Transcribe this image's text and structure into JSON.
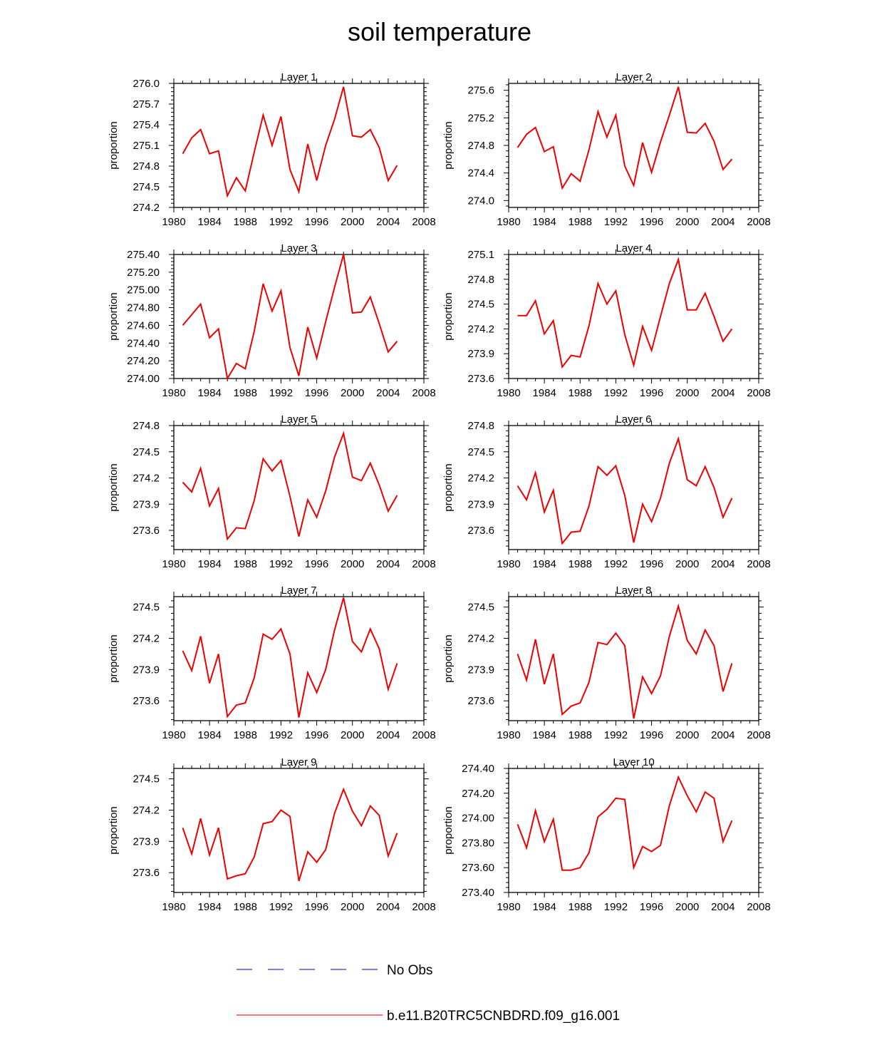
{
  "title": "soil temperature",
  "legend": {
    "items": [
      {
        "label": "No Obs",
        "style": "dashed",
        "color": "#3333cc"
      },
      {
        "label": "b.e11.B20TRC5CNBDRD.f09_g16.001",
        "style": "solid",
        "color": "#ff2020"
      }
    ]
  },
  "colors": {
    "line": "#ee0000",
    "axis": "#000000"
  },
  "chart_data": [
    {
      "type": "line",
      "title": "Layer 1",
      "ylabel": "proportion",
      "xlim": [
        1980,
        2008
      ],
      "xticks": [
        1980,
        1984,
        1988,
        1992,
        1996,
        2000,
        2004,
        2008
      ],
      "ylim": [
        274.2,
        276.0
      ],
      "yticks": [
        274.2,
        274.5,
        274.8,
        275.1,
        275.4,
        275.7,
        276.0
      ],
      "ydecimals": 1,
      "x": [
        1981,
        1982,
        1983,
        1984,
        1985,
        1986,
        1987,
        1988,
        1989,
        1990,
        1991,
        1992,
        1993,
        1994,
        1995,
        1996,
        1997,
        1998,
        1999,
        2000,
        2001,
        2002,
        2003,
        2004,
        2005
      ],
      "series": [
        {
          "values": [
            274.98,
            275.21,
            275.33,
            274.98,
            275.02,
            274.37,
            274.63,
            274.44,
            275.0,
            275.54,
            275.1,
            275.52,
            274.75,
            274.43,
            275.12,
            274.59,
            275.1,
            275.48,
            275.95,
            275.24,
            275.22,
            275.33,
            275.07,
            274.59,
            274.81
          ]
        }
      ]
    },
    {
      "type": "line",
      "title": "Layer 2",
      "ylabel": "proportion",
      "xlim": [
        1980,
        2008
      ],
      "xticks": [
        1980,
        1984,
        1988,
        1992,
        1996,
        2000,
        2004,
        2008
      ],
      "ylim": [
        273.9,
        275.7
      ],
      "yticks": [
        274.0,
        274.4,
        274.8,
        275.2,
        275.6
      ],
      "ydecimals": 1,
      "x": [
        1981,
        1982,
        1983,
        1984,
        1985,
        1986,
        1987,
        1988,
        1989,
        1990,
        1991,
        1992,
        1993,
        1994,
        1995,
        1996,
        1997,
        1998,
        1999,
        2000,
        2001,
        2002,
        2003,
        2004,
        2005
      ],
      "series": [
        {
          "values": [
            274.77,
            274.96,
            275.06,
            274.71,
            274.78,
            274.18,
            274.39,
            274.28,
            274.74,
            275.29,
            274.92,
            275.24,
            274.5,
            274.22,
            274.84,
            274.41,
            274.85,
            275.24,
            275.65,
            274.99,
            274.98,
            275.12,
            274.86,
            274.45,
            274.6
          ]
        }
      ]
    },
    {
      "type": "line",
      "title": "Layer 3",
      "ylabel": "proportion",
      "xlim": [
        1980,
        2008
      ],
      "xticks": [
        1980,
        1984,
        1988,
        1992,
        1996,
        2000,
        2004,
        2008
      ],
      "ylim": [
        274.0,
        275.4
      ],
      "yticks": [
        274.0,
        274.2,
        274.4,
        274.6,
        274.8,
        275.0,
        275.2,
        275.4
      ],
      "ydecimals": 2,
      "x": [
        1981,
        1982,
        1983,
        1984,
        1985,
        1986,
        1987,
        1988,
        1989,
        1990,
        1991,
        1992,
        1993,
        1994,
        1995,
        1996,
        1997,
        1998,
        1999,
        2000,
        2001,
        2002,
        2003,
        2004,
        2005
      ],
      "series": [
        {
          "values": [
            274.6,
            274.72,
            274.84,
            274.46,
            274.56,
            274.0,
            274.17,
            274.11,
            274.53,
            275.07,
            274.76,
            274.99,
            274.35,
            274.03,
            274.58,
            274.23,
            274.64,
            275.03,
            275.4,
            274.74,
            274.75,
            274.92,
            274.62,
            274.3,
            274.42
          ]
        }
      ]
    },
    {
      "type": "line",
      "title": "Layer 4",
      "ylabel": "proportion",
      "xlim": [
        1980,
        2008
      ],
      "xticks": [
        1980,
        1984,
        1988,
        1992,
        1996,
        2000,
        2004,
        2008
      ],
      "ylim": [
        273.6,
        275.1
      ],
      "yticks": [
        273.6,
        273.9,
        274.2,
        274.5,
        274.8,
        275.1
      ],
      "ydecimals": 1,
      "x": [
        1981,
        1982,
        1983,
        1984,
        1985,
        1986,
        1987,
        1988,
        1989,
        1990,
        1991,
        1992,
        1993,
        1994,
        1995,
        1996,
        1997,
        1998,
        1999,
        2000,
        2001,
        2002,
        2003,
        2004,
        2005
      ],
      "series": [
        {
          "values": [
            274.36,
            274.36,
            274.54,
            274.14,
            274.3,
            273.74,
            273.88,
            273.86,
            274.24,
            274.75,
            274.5,
            274.66,
            274.13,
            273.76,
            274.23,
            273.94,
            274.35,
            274.75,
            275.04,
            274.43,
            274.43,
            274.63,
            274.35,
            274.05,
            274.2
          ]
        }
      ]
    },
    {
      "type": "line",
      "title": "Layer 5",
      "ylabel": "proportion",
      "xlim": [
        1980,
        2008
      ],
      "xticks": [
        1980,
        1984,
        1988,
        1992,
        1996,
        2000,
        2004,
        2008
      ],
      "ylim": [
        273.38,
        274.8
      ],
      "yticks": [
        273.6,
        273.9,
        274.2,
        274.5,
        274.8
      ],
      "ydecimals": 1,
      "x": [
        1981,
        1982,
        1983,
        1984,
        1985,
        1986,
        1987,
        1988,
        1989,
        1990,
        1991,
        1992,
        1993,
        1994,
        1995,
        1996,
        1997,
        1998,
        1999,
        2000,
        2001,
        2002,
        2003,
        2004,
        2005
      ],
      "series": [
        {
          "values": [
            274.15,
            274.04,
            274.31,
            273.88,
            274.08,
            273.5,
            273.63,
            273.62,
            273.94,
            274.42,
            274.28,
            274.4,
            273.99,
            273.53,
            273.95,
            273.75,
            274.05,
            274.44,
            274.71,
            274.21,
            274.17,
            274.37,
            274.12,
            273.82,
            274.0
          ]
        }
      ]
    },
    {
      "type": "line",
      "title": "Layer 6",
      "ylabel": "proportion",
      "xlim": [
        1980,
        2008
      ],
      "xticks": [
        1980,
        1984,
        1988,
        1992,
        1996,
        2000,
        2004,
        2008
      ],
      "ylim": [
        273.38,
        274.8
      ],
      "yticks": [
        273.6,
        273.9,
        274.2,
        274.5,
        274.8
      ],
      "ydecimals": 1,
      "x": [
        1981,
        1982,
        1983,
        1984,
        1985,
        1986,
        1987,
        1988,
        1989,
        1990,
        1991,
        1992,
        1993,
        1994,
        1995,
        1996,
        1997,
        1998,
        1999,
        2000,
        2001,
        2002,
        2003,
        2004,
        2005
      ],
      "series": [
        {
          "values": [
            274.11,
            273.95,
            274.26,
            273.81,
            274.06,
            273.45,
            273.58,
            273.59,
            273.88,
            274.33,
            274.23,
            274.34,
            274.0,
            273.46,
            273.9,
            273.7,
            273.97,
            274.37,
            274.65,
            274.18,
            274.11,
            274.33,
            274.09,
            273.75,
            273.97
          ]
        }
      ]
    },
    {
      "type": "line",
      "title": "Layer 7",
      "ylabel": "proportion",
      "xlim": [
        1980,
        2008
      ],
      "xticks": [
        1980,
        1984,
        1988,
        1992,
        1996,
        2000,
        2004,
        2008
      ],
      "ylim": [
        273.41,
        274.6
      ],
      "yticks": [
        273.6,
        273.9,
        274.2,
        274.5
      ],
      "ydecimals": 1,
      "x": [
        1981,
        1982,
        1983,
        1984,
        1985,
        1986,
        1987,
        1988,
        1989,
        1990,
        1991,
        1992,
        1993,
        1994,
        1995,
        1996,
        1997,
        1998,
        1999,
        2000,
        2001,
        2002,
        2003,
        2004,
        2005
      ],
      "series": [
        {
          "values": [
            274.08,
            273.89,
            274.22,
            273.77,
            274.05,
            273.45,
            273.56,
            273.58,
            273.82,
            274.24,
            274.19,
            274.29,
            274.05,
            273.44,
            273.87,
            273.68,
            273.9,
            274.28,
            274.59,
            274.17,
            274.07,
            274.29,
            274.1,
            273.71,
            273.96
          ]
        }
      ]
    },
    {
      "type": "line",
      "title": "Layer 8",
      "ylabel": "proportion",
      "xlim": [
        1980,
        2008
      ],
      "xticks": [
        1980,
        1984,
        1988,
        1992,
        1996,
        2000,
        2004,
        2008
      ],
      "ylim": [
        273.41,
        274.6
      ],
      "yticks": [
        273.6,
        273.9,
        274.2,
        274.5
      ],
      "ydecimals": 1,
      "x": [
        1981,
        1982,
        1983,
        1984,
        1985,
        1986,
        1987,
        1988,
        1989,
        1990,
        1991,
        1992,
        1993,
        1994,
        1995,
        1996,
        1997,
        1998,
        1999,
        2000,
        2001,
        2002,
        2003,
        2004,
        2005
      ],
      "series": [
        {
          "values": [
            274.05,
            273.8,
            274.19,
            273.76,
            274.05,
            273.47,
            273.55,
            273.58,
            273.78,
            274.16,
            274.14,
            274.25,
            274.13,
            273.43,
            273.83,
            273.67,
            273.84,
            274.22,
            274.51,
            274.18,
            274.05,
            274.28,
            274.13,
            273.69,
            273.96
          ]
        }
      ]
    },
    {
      "type": "line",
      "title": "Layer 9",
      "ylabel": "proportion",
      "xlim": [
        1980,
        2008
      ],
      "xticks": [
        1980,
        1984,
        1988,
        1992,
        1996,
        2000,
        2004,
        2008
      ],
      "ylim": [
        273.41,
        274.6
      ],
      "yticks": [
        273.6,
        273.9,
        274.2,
        274.5
      ],
      "ydecimals": 1,
      "x": [
        1981,
        1982,
        1983,
        1984,
        1985,
        1986,
        1987,
        1988,
        1989,
        1990,
        1991,
        1992,
        1993,
        1994,
        1995,
        1996,
        1997,
        1998,
        1999,
        2000,
        2001,
        2002,
        2003,
        2004,
        2005
      ],
      "series": [
        {
          "values": [
            274.03,
            273.78,
            274.12,
            273.77,
            274.03,
            273.54,
            273.57,
            273.59,
            273.75,
            274.07,
            274.09,
            274.2,
            274.14,
            273.52,
            273.8,
            273.7,
            273.82,
            274.17,
            274.4,
            274.19,
            274.05,
            274.24,
            274.15,
            273.76,
            273.98
          ]
        }
      ]
    },
    {
      "type": "line",
      "title": "Layer 10",
      "ylabel": "proportion",
      "xlim": [
        1980,
        2008
      ],
      "xticks": [
        1980,
        1984,
        1988,
        1992,
        1996,
        2000,
        2004,
        2008
      ],
      "ylim": [
        273.4,
        274.4
      ],
      "yticks": [
        273.4,
        273.6,
        273.8,
        274.0,
        274.2,
        274.4
      ],
      "ydecimals": 2,
      "x": [
        1981,
        1982,
        1983,
        1984,
        1985,
        1986,
        1987,
        1988,
        1989,
        1990,
        1991,
        1992,
        1993,
        1994,
        1995,
        1996,
        1997,
        1998,
        1999,
        2000,
        2001,
        2002,
        2003,
        2004,
        2005
      ],
      "series": [
        {
          "values": [
            273.95,
            273.76,
            274.06,
            273.81,
            273.99,
            273.58,
            273.58,
            273.6,
            273.72,
            274.01,
            274.07,
            274.16,
            274.15,
            273.6,
            273.77,
            273.73,
            273.78,
            274.1,
            274.33,
            274.18,
            274.05,
            274.21,
            274.16,
            273.81,
            273.98
          ]
        }
      ]
    }
  ]
}
